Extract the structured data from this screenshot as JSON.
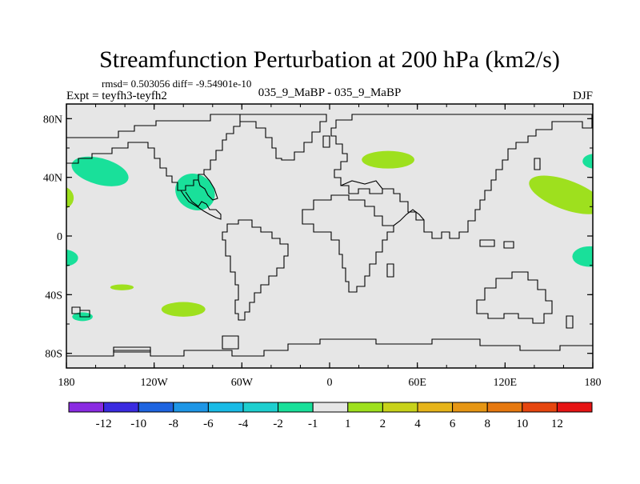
{
  "chart_data": {
    "type": "heatmap",
    "title": "Streamfunction Perturbation at 200 hPa (km2/s)",
    "subtitle_stats": "rmsd= 0.503056  diff= -9.54901e-10",
    "left_label": "Expt = teyfh3-teyfh2",
    "center_label": "035_9_MaBP - 035_9_MaBP",
    "right_label": "DJF",
    "xlim": [
      -180,
      180
    ],
    "ylim": [
      -90,
      90
    ],
    "x_ticks": [
      {
        "value": -180,
        "label": "180"
      },
      {
        "value": -120,
        "label": "120W"
      },
      {
        "value": -60,
        "label": "60W"
      },
      {
        "value": 0,
        "label": "0"
      },
      {
        "value": 60,
        "label": "60E"
      },
      {
        "value": 120,
        "label": "120E"
      },
      {
        "value": 180,
        "label": "180"
      }
    ],
    "y_ticks": [
      {
        "value": 80,
        "label": "80N"
      },
      {
        "value": 40,
        "label": "40N"
      },
      {
        "value": 0,
        "label": "0"
      },
      {
        "value": -40,
        "label": "40S"
      },
      {
        "value": -80,
        "label": "80S"
      }
    ],
    "anomalies": [
      {
        "sign": "negative",
        "category": "-2 to -1",
        "lon": -157,
        "lat": 44,
        "rlon": 20,
        "rlat": 9,
        "rot": 15
      },
      {
        "sign": "negative",
        "category": "-2 to -1",
        "lon": -92,
        "lat": 30,
        "rlon": 14,
        "rlat": 12,
        "rot": 30
      },
      {
        "sign": "negative",
        "category": "-2 to -1",
        "lon": -183,
        "lat": -15,
        "rlon": 11,
        "rlat": 6,
        "rot": 0
      },
      {
        "sign": "negative",
        "category": "-2 to -1",
        "lon": -169,
        "lat": -55,
        "rlon": 7,
        "rlat": 3,
        "rot": 0
      },
      {
        "sign": "negative",
        "category": "-2 to -1",
        "lon": 181,
        "lat": 51,
        "rlon": 8,
        "rlat": 5,
        "rot": 0
      },
      {
        "sign": "negative",
        "category": "-2 to -1",
        "lon": 178,
        "lat": -14,
        "rlon": 12,
        "rlat": 7,
        "rot": 0
      },
      {
        "sign": "positive",
        "category": "1 to 2",
        "lon": -184,
        "lat": 26,
        "rlon": 9,
        "rlat": 8,
        "rot": 0
      },
      {
        "sign": "positive",
        "category": "1 to 2",
        "lon": -142,
        "lat": -35,
        "rlon": 8,
        "rlat": 2,
        "rot": 0
      },
      {
        "sign": "positive",
        "category": "1 to 2",
        "lon": -100,
        "lat": -50,
        "rlon": 15,
        "rlat": 5,
        "rot": 0
      },
      {
        "sign": "positive",
        "category": "1 to 2",
        "lon": 40,
        "lat": 52,
        "rlon": 18,
        "rlat": 6,
        "rot": 0
      },
      {
        "sign": "positive",
        "category": "1 to 2",
        "lon": 162,
        "lat": 28,
        "rlon": 27,
        "rlat": 10,
        "rot": 20
      }
    ],
    "colorbar": {
      "colors": [
        "#8a2be2",
        "#3a2be0",
        "#1e64e0",
        "#1e96e6",
        "#19bbe6",
        "#1ecfcf",
        "#19e09a",
        "#e6e6e6",
        "#9ee01e",
        "#c8d21a",
        "#e6b41a",
        "#e69614",
        "#e6780f",
        "#e6460f",
        "#e61414"
      ],
      "labels": [
        "-12",
        "-10",
        "-8",
        "-6",
        "-4",
        "-2",
        "-1",
        "1",
        "2",
        "4",
        "6",
        "8",
        "10",
        "12"
      ]
    },
    "colors": {
      "background": "#e6e6e6",
      "negative_fill": "#19e09a",
      "positive_fill": "#9ee01e",
      "coastline": "#000000"
    }
  }
}
